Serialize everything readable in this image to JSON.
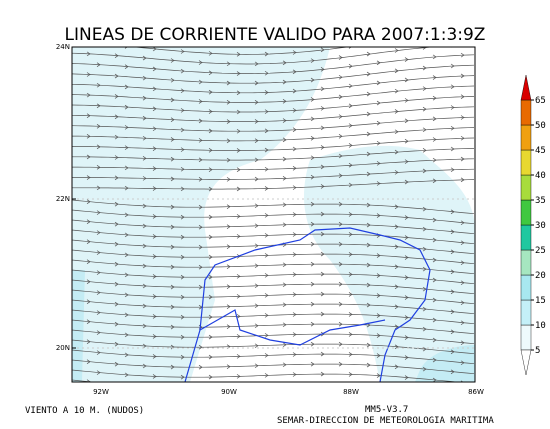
{
  "header": {
    "title": "LINEAS DE CORRIENTE VALIDO PARA 2007:1:3:9Z"
  },
  "map": {
    "lat_labels": [
      "24N",
      "22N",
      "20N"
    ],
    "lon_labels": [
      "92W",
      "90W",
      "88W",
      "86W"
    ]
  },
  "colorbar": {
    "levels": [
      5,
      10,
      15,
      20,
      25,
      30,
      35,
      40,
      45,
      50,
      65
    ],
    "colors": [
      "#eefafc",
      "#c4f0f8",
      "#a8e8f0",
      "#a6e6c0",
      "#20c8a0",
      "#40c840",
      "#a8dc3c",
      "#e8d830",
      "#f0a010",
      "#e86a00"
    ]
  },
  "footer": {
    "left": "VIENTO A 10 M. (NUDOS)",
    "model": "MM5-V3.7",
    "agency": "SEMAR-DIRECCION DE METEOROLOGIA MARITIMA"
  }
}
